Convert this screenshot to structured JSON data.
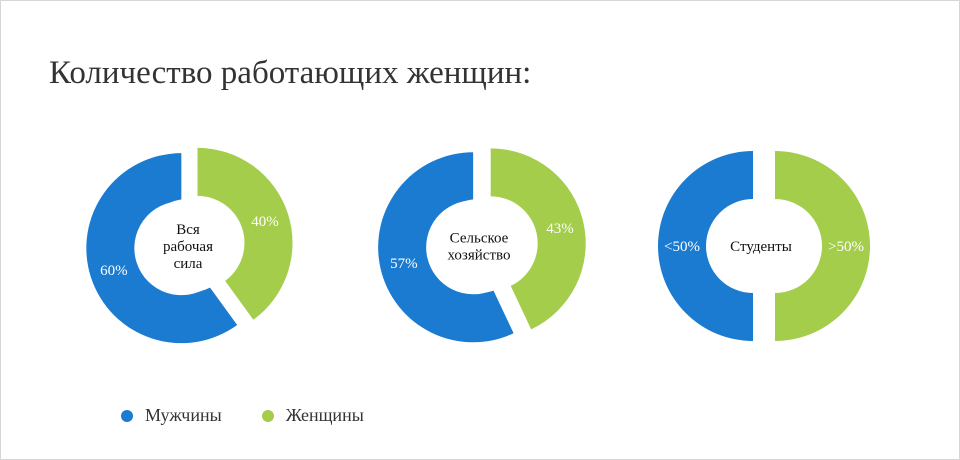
{
  "title": "Количество работающих женщин:",
  "colors": {
    "men": "#1a7bd1",
    "women": "#a3cd4b"
  },
  "legend": [
    {
      "key": "men",
      "label": "Мужчины"
    },
    {
      "key": "women",
      "label": "Женщины"
    }
  ],
  "chart_data": [
    {
      "type": "donut",
      "center_label": [
        "Вся",
        "рабочая",
        "сила"
      ],
      "slices": [
        {
          "series": "Мужчины",
          "value": 60,
          "label": "60%"
        },
        {
          "series": "Женщины",
          "value": 40,
          "label": "40%"
        }
      ]
    },
    {
      "type": "donut",
      "center_label": [
        "Сельское",
        "хозяйство"
      ],
      "slices": [
        {
          "series": "Мужчины",
          "value": 57,
          "label": "57%"
        },
        {
          "series": "Женщины",
          "value": 43,
          "label": "43%"
        }
      ]
    },
    {
      "type": "donut",
      "center_label": [
        "Студенты"
      ],
      "slices": [
        {
          "series": "Мужчины",
          "value": 50,
          "label": "<50%"
        },
        {
          "series": "Женщины",
          "value": 50,
          "label": ">50%"
        }
      ]
    }
  ]
}
